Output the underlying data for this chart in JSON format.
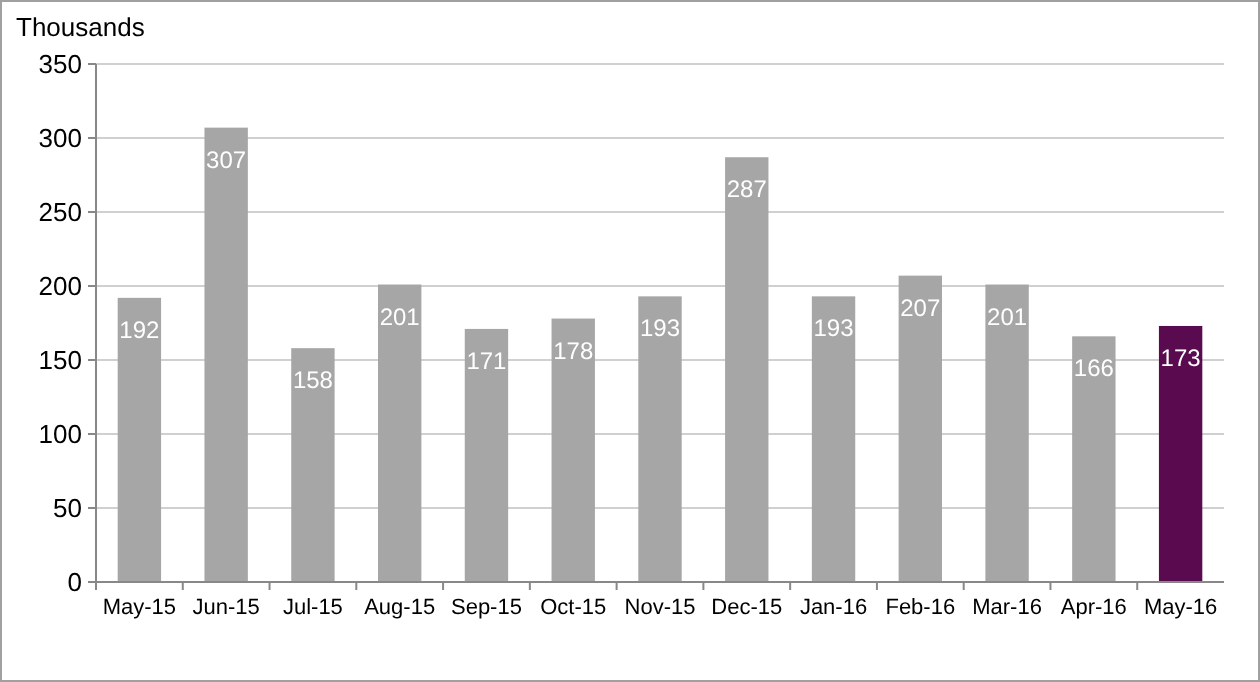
{
  "chart_data": {
    "type": "bar",
    "ylabel": "Thousands",
    "categories": [
      "May-15",
      "Jun-15",
      "Jul-15",
      "Aug-15",
      "Sep-15",
      "Oct-15",
      "Nov-15",
      "Dec-15",
      "Jan-16",
      "Feb-16",
      "Mar-16",
      "Apr-16",
      "May-16"
    ],
    "values": [
      192,
      307,
      158,
      201,
      171,
      178,
      193,
      287,
      193,
      207,
      201,
      166,
      173
    ],
    "colors": [
      "#a6a6a6",
      "#a6a6a6",
      "#a6a6a6",
      "#a6a6a6",
      "#a6a6a6",
      "#a6a6a6",
      "#a6a6a6",
      "#a6a6a6",
      "#a6a6a6",
      "#a6a6a6",
      "#a6a6a6",
      "#a6a6a6",
      "#5a0a4e"
    ],
    "ylim": [
      0,
      350
    ],
    "yticks": [
      0,
      50,
      100,
      150,
      200,
      250,
      300,
      350
    ],
    "grid": "y",
    "data_labels": true
  }
}
